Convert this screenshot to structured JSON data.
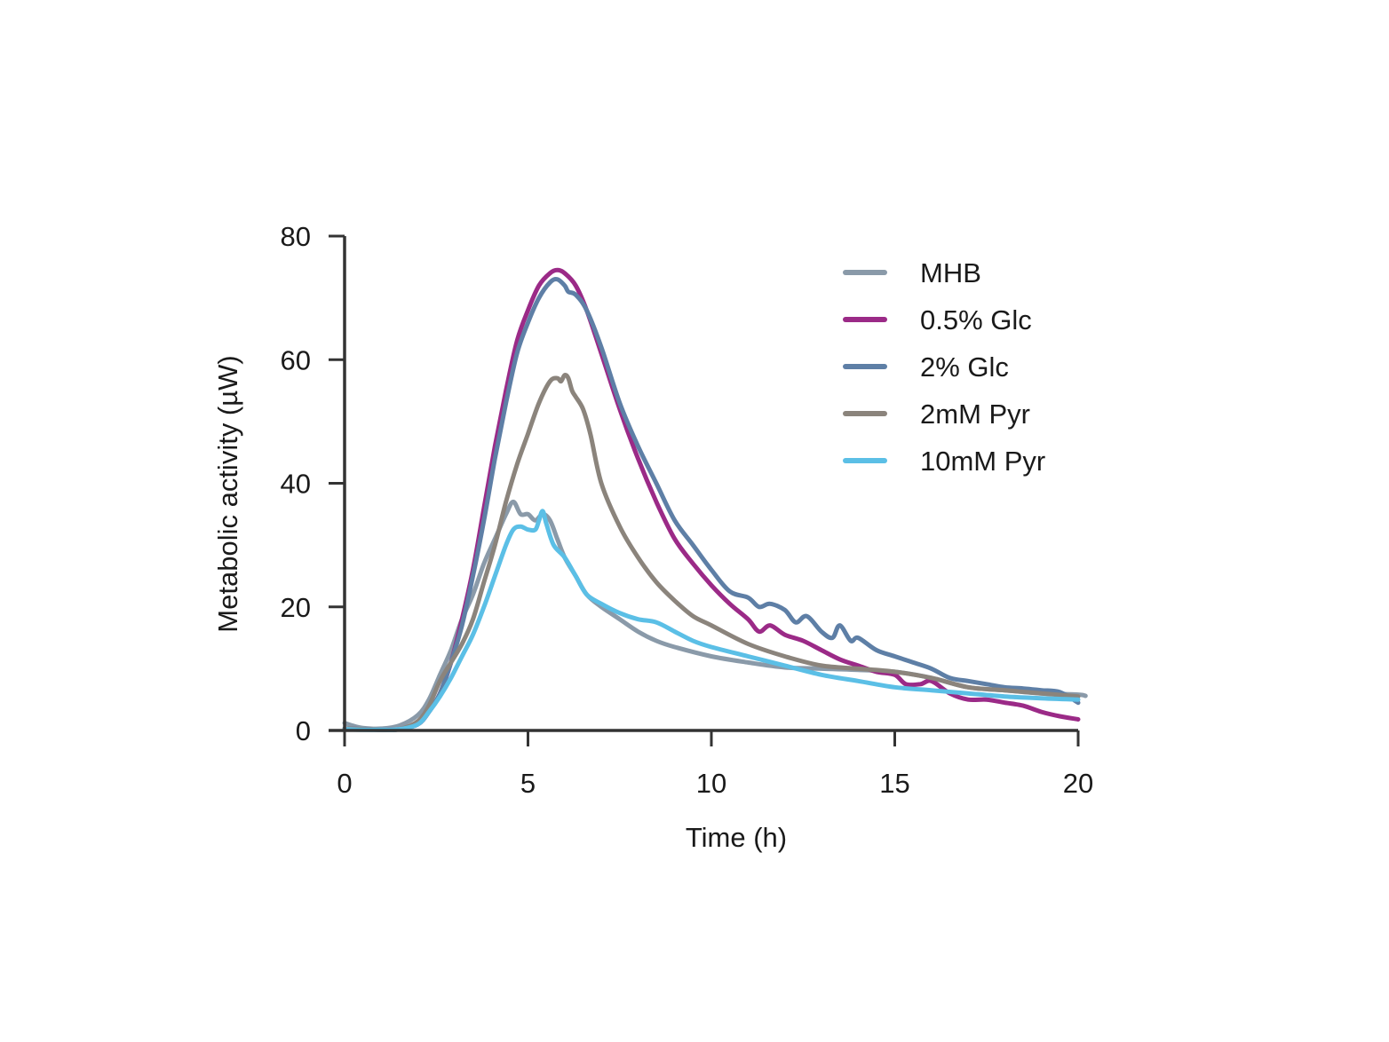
{
  "chart_data": {
    "type": "line",
    "title": "",
    "xlabel": "Time (h)",
    "ylabel": "Metabolic activity (µW)",
    "xlim": [
      0,
      20
    ],
    "ylim": [
      0,
      80
    ],
    "xticks": [
      0,
      5,
      10,
      15,
      20
    ],
    "yticks": [
      0,
      20,
      40,
      60,
      80
    ],
    "xtick_labels": [
      "0",
      "5",
      "10",
      "15",
      "20"
    ],
    "ytick_labels": [
      "0",
      "20",
      "40",
      "60",
      "80"
    ],
    "grid": false,
    "legend_position": "top-right",
    "series": [
      {
        "name": "MHB",
        "color": "#8a9aa9",
        "x": [
          0,
          0.2,
          0.5,
          1,
          1.5,
          2,
          2.3,
          2.6,
          2.9,
          3.2,
          3.5,
          3.8,
          4.1,
          4.4,
          4.6,
          4.8,
          5.0,
          5.2,
          5.4,
          5.6,
          5.8,
          6.0,
          6.3,
          6.6,
          7.0,
          7.5,
          8.0,
          8.5,
          9,
          10,
          11,
          12,
          13,
          14,
          15,
          16,
          17,
          18,
          19,
          20,
          20.2
        ],
        "values": [
          1.2,
          0.8,
          0.4,
          0.3,
          0.8,
          2.5,
          5,
          9,
          13,
          18,
          22,
          27,
          31,
          35,
          37,
          35,
          35,
          34,
          35,
          34,
          31,
          28,
          25,
          22,
          20,
          18,
          16,
          14.5,
          13.5,
          12,
          11,
          10.2,
          10,
          9.8,
          9.5,
          8.5,
          7,
          6.5,
          6,
          5.8,
          5.6
        ]
      },
      {
        "name": "0.5% Glc",
        "color": "#9b2a87",
        "x": [
          0,
          0.5,
          1,
          1.5,
          2,
          2.3,
          2.6,
          2.9,
          3.2,
          3.5,
          3.8,
          4.1,
          4.4,
          4.7,
          5.0,
          5.3,
          5.6,
          5.8,
          6.0,
          6.3,
          6.6,
          7.0,
          7.5,
          8.0,
          8.5,
          9,
          9.5,
          10,
          10.5,
          11,
          11.3,
          11.6,
          12,
          12.5,
          13,
          13.5,
          14,
          14.5,
          15,
          15.3,
          15.7,
          16,
          16.5,
          17,
          17.5,
          18,
          18.5,
          19,
          19.5,
          20
        ],
        "values": [
          0.3,
          0.2,
          0.1,
          0.2,
          1,
          3,
          6,
          11,
          18,
          26,
          36,
          46,
          55,
          63,
          68,
          72,
          74,
          74.5,
          74,
          72,
          68,
          61,
          52,
          44,
          37,
          31,
          27,
          23.5,
          20.5,
          18,
          16,
          17,
          15.5,
          14.5,
          13,
          11.5,
          10.5,
          9.5,
          9,
          7.5,
          7.5,
          8,
          6,
          5,
          5,
          4.5,
          4,
          3,
          2.3,
          1.8
        ]
      },
      {
        "name": "2% Glc",
        "color": "#5e7fa6",
        "x": [
          0,
          0.5,
          1,
          1.5,
          2,
          2.3,
          2.6,
          2.9,
          3.2,
          3.5,
          3.8,
          4.1,
          4.4,
          4.7,
          5.0,
          5.3,
          5.6,
          5.8,
          6.0,
          6.1,
          6.3,
          6.6,
          7.0,
          7.5,
          8.0,
          8.5,
          9,
          9.5,
          10,
          10.5,
          11,
          11.3,
          11.6,
          12,
          12.3,
          12.6,
          13,
          13.3,
          13.5,
          13.8,
          14,
          14.5,
          15,
          15.5,
          16,
          16.5,
          17,
          17.5,
          18,
          18.5,
          19,
          19.5,
          20
        ],
        "values": [
          0.3,
          0.2,
          0.1,
          0.2,
          1,
          3,
          6,
          11,
          17,
          25,
          34,
          44,
          53,
          61,
          66,
          70,
          72.5,
          73,
          72,
          71,
          70.5,
          68,
          62,
          53,
          46,
          40,
          34,
          30,
          26,
          22.5,
          21.5,
          20,
          20.5,
          19.5,
          17.5,
          18.5,
          16,
          15,
          17,
          14.5,
          15,
          13,
          12,
          11,
          10,
          8.5,
          8,
          7.5,
          7,
          6.8,
          6.5,
          6.2,
          4.5
        ]
      },
      {
        "name": "2mM Pyr",
        "color": "#8b847c",
        "x": [
          0,
          0.5,
          1,
          1.5,
          2,
          2.3,
          2.6,
          2.9,
          3.2,
          3.5,
          3.8,
          4.1,
          4.4,
          4.7,
          5.0,
          5.3,
          5.6,
          5.8,
          5.9,
          6.0,
          6.1,
          6.2,
          6.3,
          6.5,
          6.7,
          7.0,
          7.5,
          8.0,
          8.5,
          9,
          9.5,
          10,
          11,
          12,
          13,
          14,
          15,
          16,
          17,
          18,
          19,
          20
        ],
        "values": [
          0.3,
          0.2,
          0.1,
          0.2,
          1.5,
          4,
          8,
          11,
          14,
          18,
          24,
          30,
          37,
          43,
          48,
          53,
          56.5,
          57,
          56.5,
          57.5,
          57,
          55,
          54,
          52,
          48,
          40,
          33,
          28,
          24,
          21,
          18.5,
          17,
          14,
          12,
          10.5,
          10,
          9.5,
          8.5,
          7,
          6.5,
          6,
          5.5
        ]
      },
      {
        "name": "10mM Pyr",
        "color": "#5bbfe6",
        "x": [
          0,
          0.5,
          1,
          1.5,
          2,
          2.3,
          2.6,
          2.9,
          3.2,
          3.5,
          3.8,
          4.1,
          4.4,
          4.6,
          4.8,
          5.0,
          5.2,
          5.3,
          5.4,
          5.5,
          5.7,
          6.0,
          6.3,
          6.6,
          7.0,
          7.5,
          8.0,
          8.5,
          9,
          9.5,
          10,
          11,
          12,
          13,
          14,
          15,
          16,
          17,
          18,
          19,
          20
        ],
        "values": [
          0.2,
          0.1,
          0.1,
          0.2,
          1,
          3,
          5.5,
          8.5,
          12,
          15.5,
          20,
          25,
          30,
          32.5,
          33,
          32.5,
          32.5,
          34,
          35.5,
          33.5,
          30,
          28,
          25,
          22,
          20.5,
          19,
          18,
          17.5,
          16,
          14.5,
          13.5,
          12,
          10.5,
          9,
          8,
          7,
          6.5,
          6,
          5.5,
          5.2,
          5
        ]
      }
    ]
  }
}
